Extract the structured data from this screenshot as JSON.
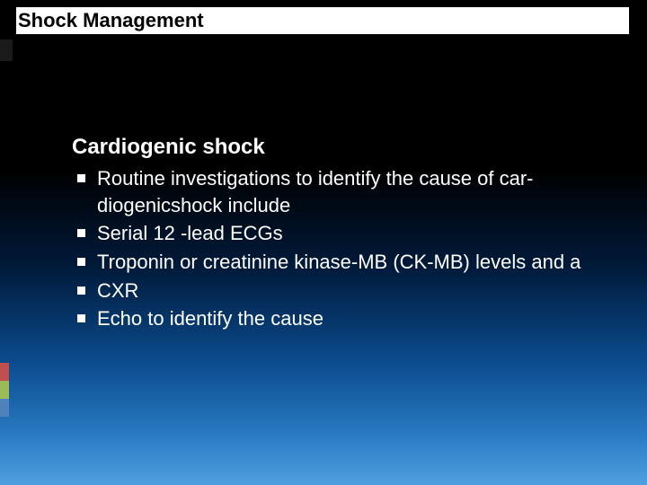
{
  "slide": {
    "title": "Shock Management",
    "subtitle": "Cardiogenic shock",
    "bullets": [
      "Routine  investigations  to  identify   the  cause   of  car-diogenicshock  include",
      "Serial  12 -lead  ECGs",
      "Troponin or creatinine kinase-MB (CK-MB) levels and a",
      "CXR",
      "Echo to identify the cause"
    ],
    "title_fontsize": 22,
    "subtitle_fontsize": 24,
    "body_fontsize": 22,
    "text_color": "#ffffff",
    "title_color": "#000000",
    "title_bg": "#ffffff",
    "gradient_stops": [
      "#000000",
      "#000000",
      "#001a3a",
      "#0b4c8f",
      "#2a7bc4",
      "#4f9fe0"
    ],
    "accent_colors": [
      "#c0504d",
      "#9bbb59",
      "#4f81bd"
    ]
  }
}
